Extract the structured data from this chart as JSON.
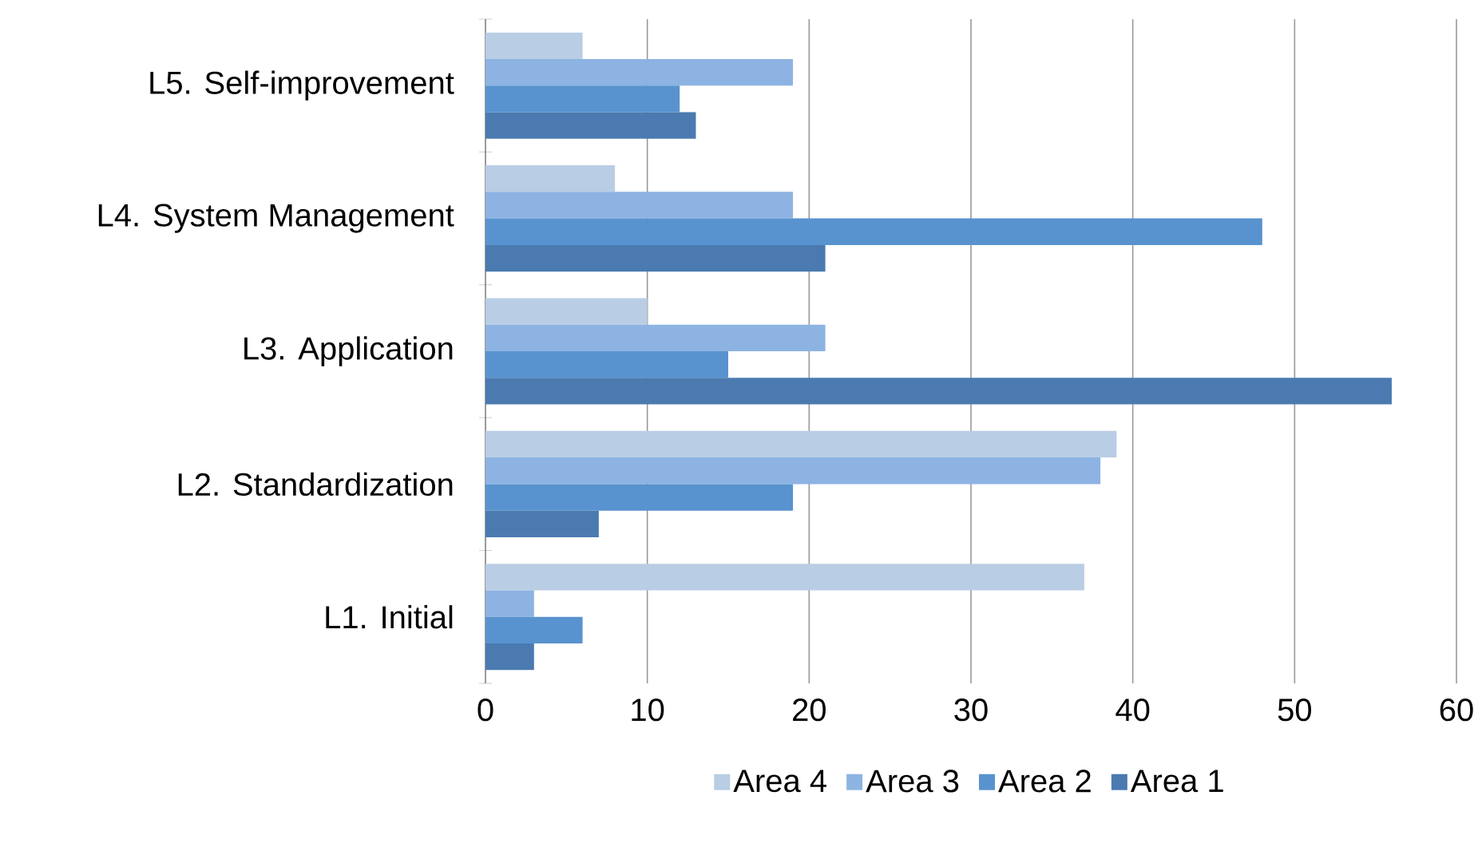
{
  "chart_data": {
    "type": "bar",
    "orientation": "horizontal",
    "categories": [
      "L5. Self-improvement",
      "L4. System Management",
      "L3. Application",
      "L2. Standardization",
      "L1. Initial"
    ],
    "series": [
      {
        "name": "Area 4",
        "color": "#b9cde5",
        "values": [
          6,
          8,
          10,
          39,
          37
        ]
      },
      {
        "name": "Area 3",
        "color": "#8db3e2",
        "values": [
          19,
          19,
          21,
          38,
          3
        ]
      },
      {
        "name": "Area 2",
        "color": "#5893cf",
        "values": [
          12,
          48,
          15,
          19,
          6
        ]
      },
      {
        "name": "Area 1",
        "color": "#4a7ab0",
        "values": [
          13,
          21,
          56,
          7,
          3
        ]
      }
    ],
    "xlim": [
      0,
      60
    ],
    "xticks": [
      0,
      10,
      20,
      30,
      40,
      50,
      60
    ],
    "grid": "x",
    "legend": "bottom"
  }
}
